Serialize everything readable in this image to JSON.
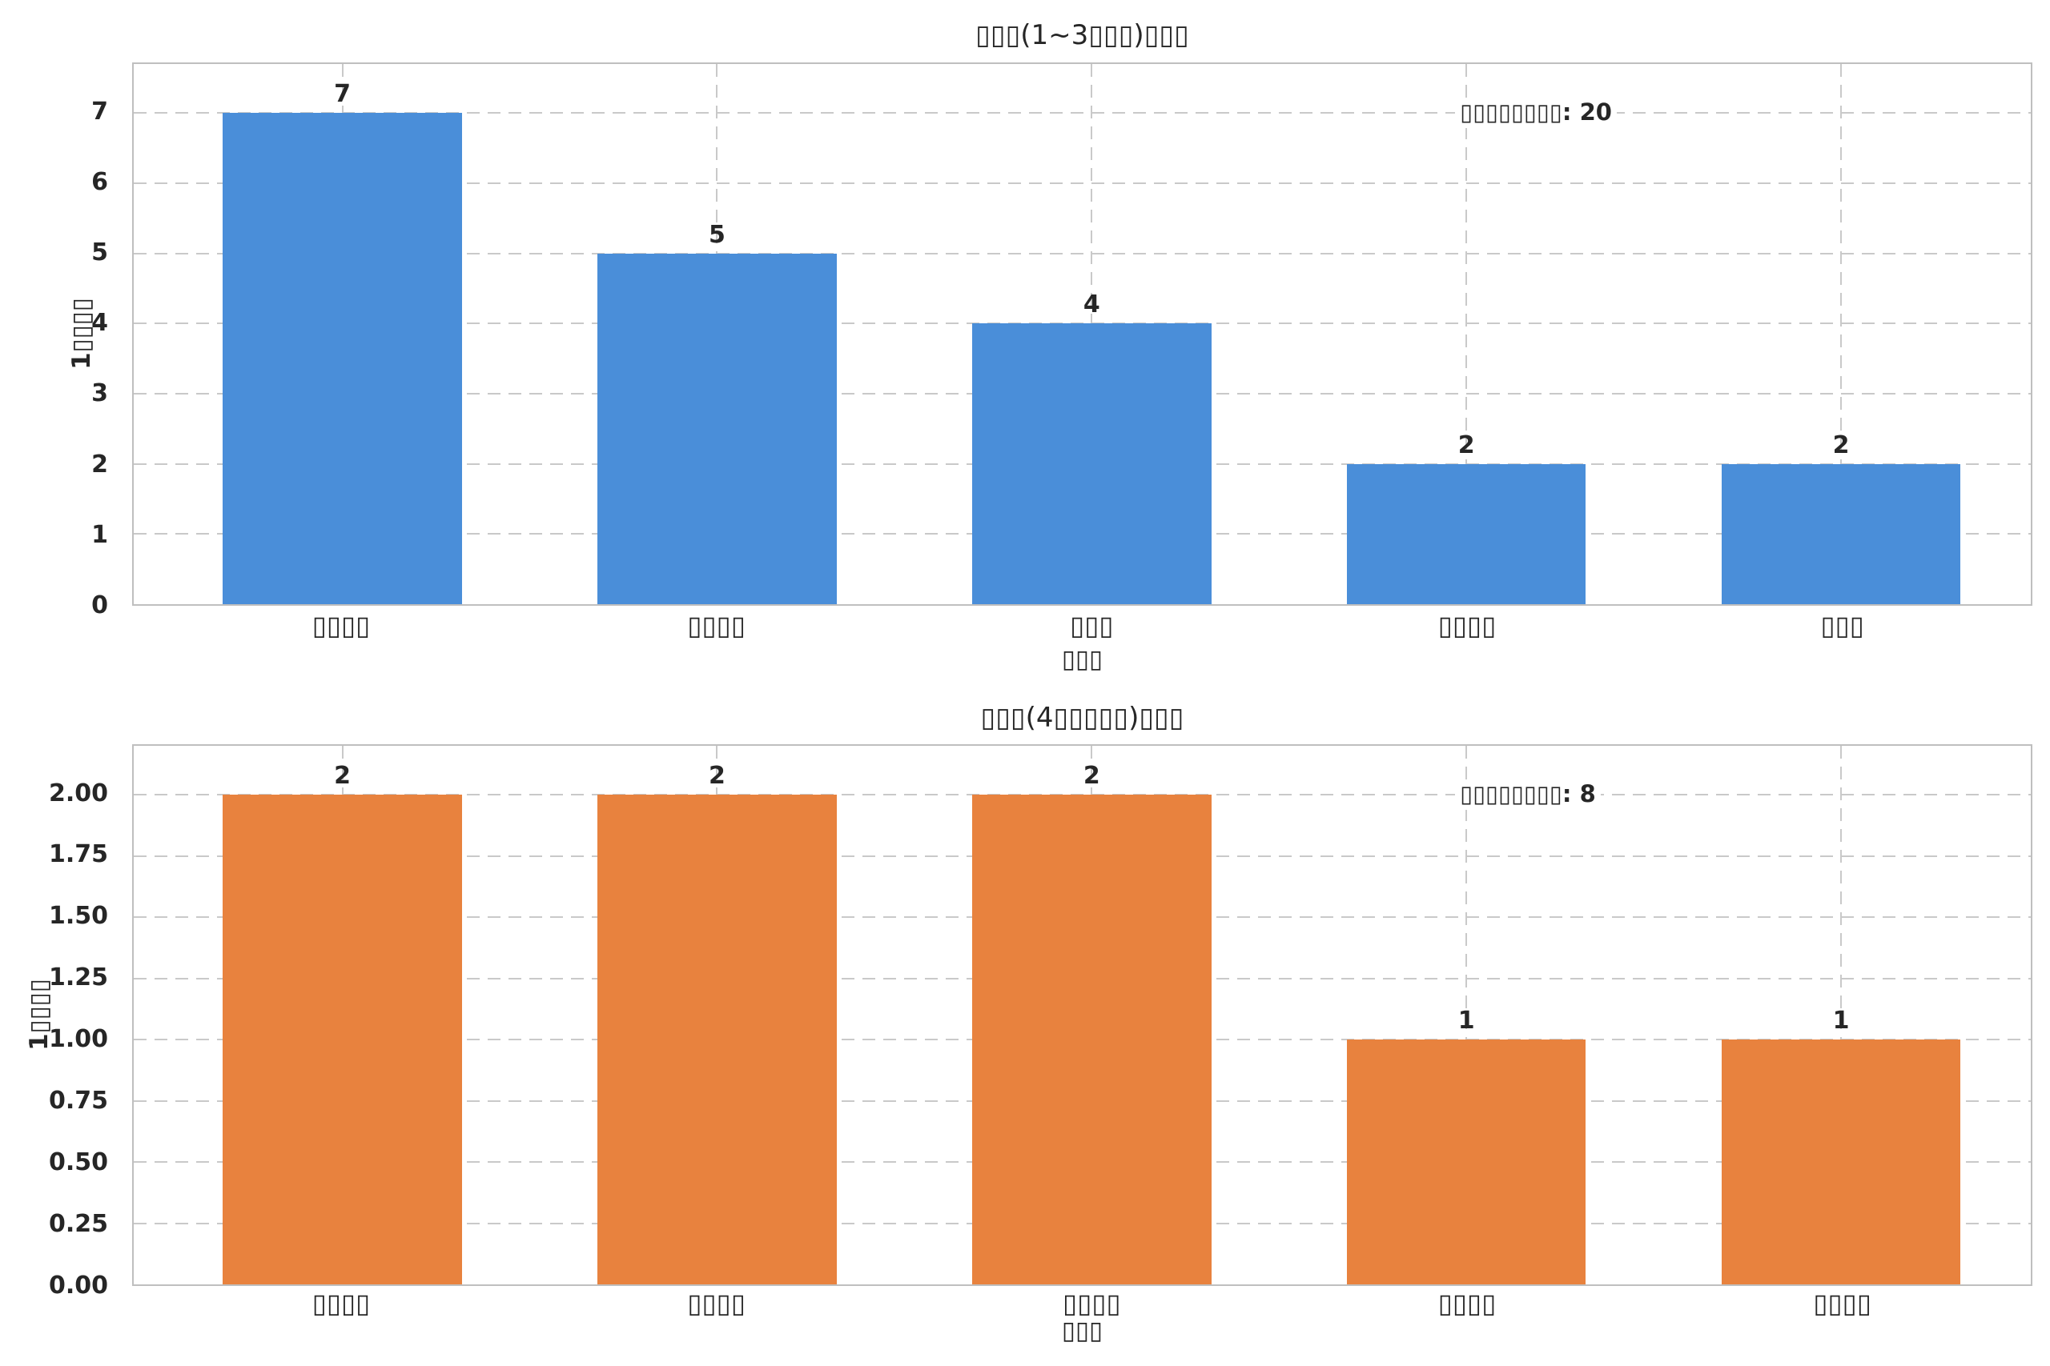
{
  "figure": {
    "background": "#ffffff",
    "text_color": "#262626",
    "grid_color": "#c9c9c9"
  },
  "chart_data": [
    {
      "type": "bar",
      "title": "▯▯▯(1~3▯▯▯)▯▯▯",
      "xlabel": "▯▯▯",
      "ylabel": "1▯▯▯▯",
      "categories": [
        "▯▯▯▯",
        "▯▯▯▯",
        "▯▯▯",
        "▯▯▯▯",
        "▯▯▯"
      ],
      "values": [
        7,
        5,
        4,
        2,
        2
      ],
      "bar_labels": [
        "7",
        "5",
        "4",
        "2",
        "2"
      ],
      "yticks": [
        "0",
        "1",
        "2",
        "3",
        "4",
        "5",
        "6",
        "7"
      ],
      "ytick_values": [
        0,
        1,
        2,
        3,
        4,
        5,
        6,
        7
      ],
      "ylim": [
        0,
        7.7
      ],
      "annotation": "▯▯▯▯▯▯▯▯: 20",
      "bar_color": "#4a8ed9",
      "grid": true,
      "legend": "none"
    },
    {
      "type": "bar",
      "title": "▯▯▯(4▯▯▯▯▯)▯▯▯",
      "xlabel": "▯▯▯",
      "ylabel": "1▯▯▯▯",
      "categories": [
        "▯▯▯▯",
        "▯▯▯▯",
        "▯▯▯▯",
        "▯▯▯▯",
        "▯▯▯▯"
      ],
      "values": [
        2,
        2,
        2,
        1,
        1
      ],
      "bar_labels": [
        "2",
        "2",
        "2",
        "1",
        "1"
      ],
      "yticks": [
        "0.00",
        "0.25",
        "0.50",
        "0.75",
        "1.00",
        "1.25",
        "1.50",
        "1.75",
        "2.00"
      ],
      "ytick_values": [
        0,
        0.25,
        0.5,
        0.75,
        1,
        1.25,
        1.5,
        1.75,
        2
      ],
      "ylim": [
        0,
        2.2
      ],
      "annotation": "▯▯▯▯▯▯▯▯: 8",
      "bar_color": "#e8823e",
      "grid": true,
      "legend": "none"
    }
  ]
}
